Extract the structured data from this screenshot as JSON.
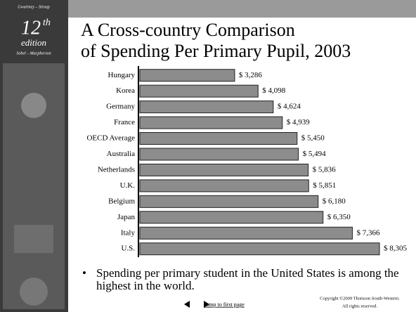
{
  "sidebar": {
    "authors_top": "Gwartney – Stroup",
    "edition_number": "12",
    "edition_suffix": "th",
    "edition_word": "edition",
    "authors_bottom": "Sobel – Macpherson"
  },
  "chart_data": {
    "type": "bar",
    "orientation": "horizontal",
    "title": [
      "A Cross-country Comparison",
      "of Spending Per Primary Pupil, 2003"
    ],
    "categories": [
      "Hungary",
      "Korea",
      "Germany",
      "France",
      "OECD Average",
      "Australia",
      "Netherlands",
      "U.K.",
      "Belgium",
      "Japan",
      "Italy",
      "U.S."
    ],
    "values": [
      3286,
      4098,
      4624,
      4939,
      5450,
      5494,
      5836,
      5851,
      6180,
      6350,
      7366,
      8305
    ],
    "value_labels": [
      "$ 3,286",
      "$ 4,098",
      "$ 4,624",
      "$ 4,939",
      "$ 5,450",
      "$ 5,494",
      "$ 5,836",
      "$ 5,851",
      "$ 6,180",
      "$ 6,350",
      "$ 7,366",
      "$ 8,305"
    ],
    "color": "#8c8c8c"
  },
  "bullet": "Spending per primary student in the United States is among the highest in the world.",
  "footer": {
    "jump_link": "Jump to first page",
    "copyright": "Copyright ©2009  Thomson South-Western.",
    "rights": "All rights reserved."
  }
}
